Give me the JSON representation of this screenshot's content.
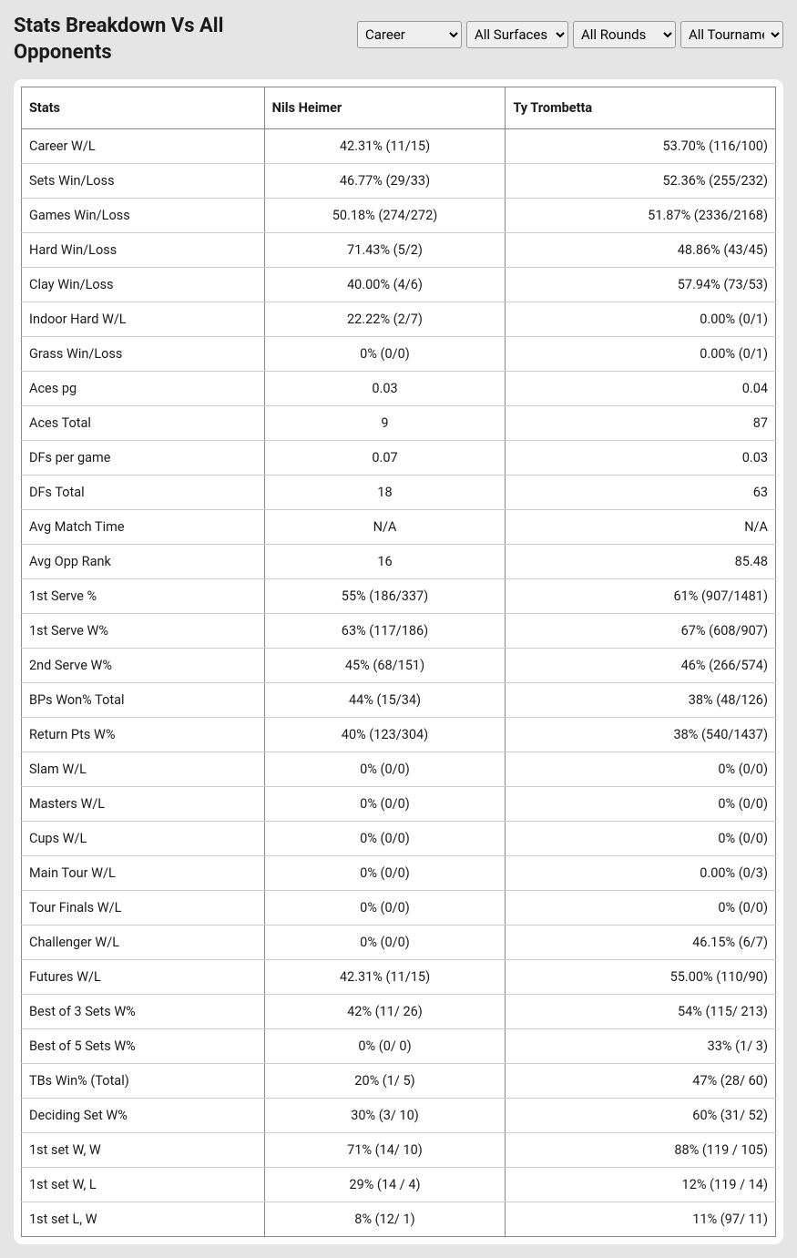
{
  "header": {
    "title": "Stats Breakdown Vs All Opponents",
    "selectors": {
      "career": {
        "value": "Career",
        "options": [
          "Career"
        ]
      },
      "surface": {
        "value": "All Surfaces",
        "options": [
          "All Surfaces"
        ]
      },
      "rounds": {
        "value": "All Rounds",
        "options": [
          "All Rounds"
        ]
      },
      "tournament": {
        "value": "All Tournaments",
        "options": [
          "All Tournaments"
        ]
      }
    }
  },
  "table": {
    "columns": [
      "Stats",
      "Nils Heimer",
      "Ty Trombetta"
    ],
    "rows": [
      [
        "Career W/L",
        "42.31% (11/15)",
        "53.70% (116/100)"
      ],
      [
        "Sets Win/Loss",
        "46.77% (29/33)",
        "52.36% (255/232)"
      ],
      [
        "Games Win/Loss",
        "50.18% (274/272)",
        "51.87% (2336/2168)"
      ],
      [
        "Hard Win/Loss",
        "71.43% (5/2)",
        "48.86% (43/45)"
      ],
      [
        "Clay Win/Loss",
        "40.00% (4/6)",
        "57.94% (73/53)"
      ],
      [
        "Indoor Hard W/L",
        "22.22% (2/7)",
        "0.00% (0/1)"
      ],
      [
        "Grass Win/Loss",
        "0% (0/0)",
        "0.00% (0/1)"
      ],
      [
        "Aces pg",
        "0.03",
        "0.04"
      ],
      [
        "Aces Total",
        "9",
        "87"
      ],
      [
        "DFs per game",
        "0.07",
        "0.03"
      ],
      [
        "DFs Total",
        "18",
        "63"
      ],
      [
        "Avg Match Time",
        "N/A",
        "N/A"
      ],
      [
        "Avg Opp Rank",
        "16",
        "85.48"
      ],
      [
        "1st Serve %",
        "55% (186/337)",
        "61% (907/1481)"
      ],
      [
        "1st Serve W%",
        "63% (117/186)",
        "67% (608/907)"
      ],
      [
        "2nd Serve W%",
        "45% (68/151)",
        "46% (266/574)"
      ],
      [
        "BPs Won% Total",
        "44% (15/34)",
        "38% (48/126)"
      ],
      [
        "Return Pts W%",
        "40% (123/304)",
        "38% (540/1437)"
      ],
      [
        "Slam W/L",
        "0% (0/0)",
        "0% (0/0)"
      ],
      [
        "Masters W/L",
        "0% (0/0)",
        "0% (0/0)"
      ],
      [
        "Cups W/L",
        "0% (0/0)",
        "0% (0/0)"
      ],
      [
        "Main Tour W/L",
        "0% (0/0)",
        "0.00% (0/3)"
      ],
      [
        "Tour Finals W/L",
        "0% (0/0)",
        "0% (0/0)"
      ],
      [
        "Challenger W/L",
        "0% (0/0)",
        "46.15% (6/7)"
      ],
      [
        "Futures W/L",
        "42.31% (11/15)",
        "55.00% (110/90)"
      ],
      [
        "Best of 3 Sets W%",
        "42% (11/ 26)",
        "54% (115/ 213)"
      ],
      [
        "Best of 5 Sets W%",
        "0% (0/ 0)",
        "33% (1/ 3)"
      ],
      [
        "TBs Win% (Total)",
        "20% (1/ 5)",
        "47% (28/ 60)"
      ],
      [
        "Deciding Set W%",
        "30% (3/ 10)",
        "60% (31/ 52)"
      ],
      [
        "1st set W, W",
        "71% (14/ 10)",
        "88% (119 / 105)"
      ],
      [
        "1st set W, L",
        "29% (14 / 4)",
        "12% (119 / 14)"
      ],
      [
        "1st set L, W",
        "8% (12/ 1)",
        "11% (97/ 11)"
      ]
    ]
  },
  "colors": {
    "page_bg": "#e5e5e5",
    "card_bg": "#ffffff",
    "header_border": "#888888",
    "row_border": "#cccccc",
    "text": "#1a1a1a"
  }
}
